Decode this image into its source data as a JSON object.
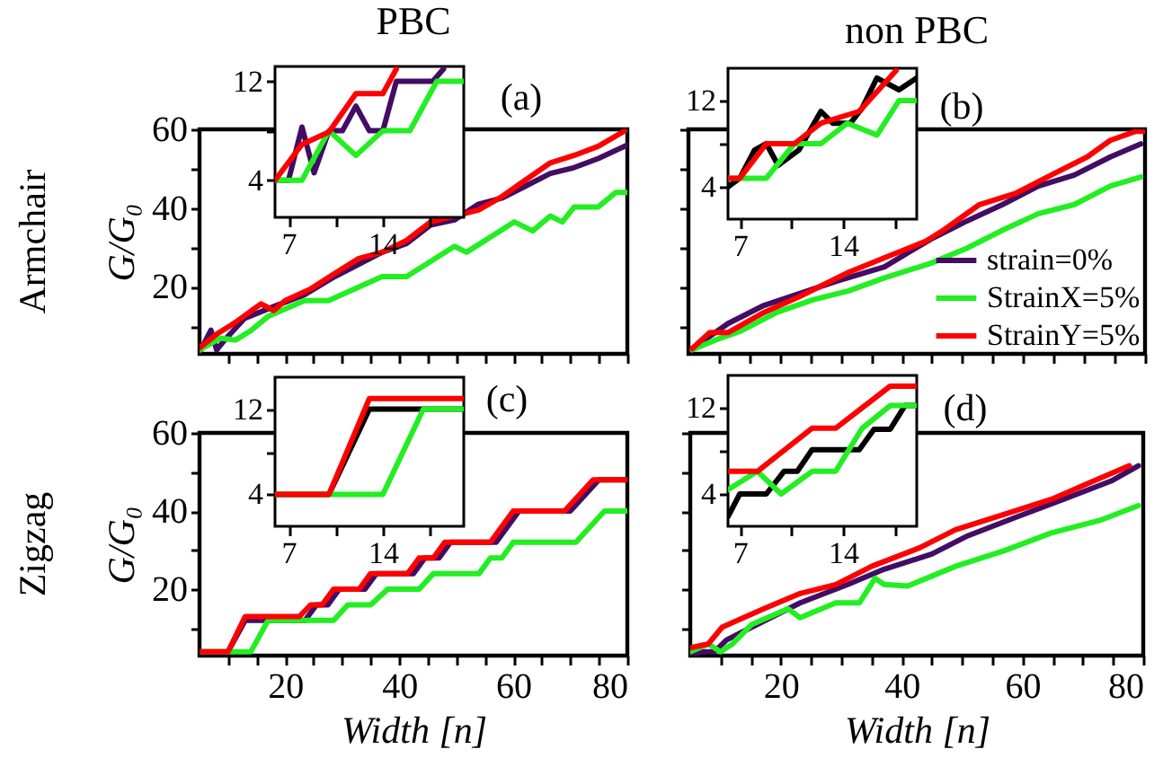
{
  "chart_data": [
    {
      "type": "line",
      "title": "PBC",
      "ylabel": "G/G₀",
      "annotations": [
        "(a)",
        "Armchair"
      ],
      "xlim": [
        5,
        80
      ],
      "ylim": [
        3,
        60
      ],
      "tick_labels": "y",
      "xticks": [
        {
          "value": 10,
          "label": null
        },
        {
          "value": 15,
          "label": null
        },
        20,
        {
          "value": 25,
          "label": null
        },
        {
          "value": 30,
          "label": null
        },
        {
          "value": 35,
          "label": null
        },
        40,
        {
          "value": 45,
          "label": null
        },
        {
          "value": 50,
          "label": null
        },
        {
          "value": 55,
          "label": null
        },
        60,
        {
          "value": 65,
          "label": null
        },
        {
          "value": 70,
          "label": null
        },
        {
          "value": 75,
          "label": null
        },
        80
      ],
      "yticks": [
        {
          "value": 10,
          "label": null
        },
        20,
        {
          "value": 30,
          "label": null
        },
        40,
        {
          "value": 50,
          "label": null
        },
        60
      ],
      "series": [
        {
          "color": "#420d63",
          "x": [
            5,
            7,
            8,
            9.7,
            12.9,
            18,
            23.4,
            28.7,
            32.9,
            37,
            41.3,
            45.5,
            49.7,
            53.9,
            58.1,
            62.3,
            66.5,
            70.7,
            74.9,
            80
          ],
          "values": [
            3.4,
            9,
            4,
            7,
            12,
            15,
            18,
            22.6,
            25.7,
            28.8,
            31,
            35.7,
            37,
            41,
            42.6,
            45.7,
            48.8,
            50.3,
            52.6,
            56
          ]
        },
        {
          "color": "#22ee22",
          "x": [
            5,
            8.7,
            11.3,
            13.9,
            17.1,
            23.4,
            27.6,
            37,
            41.3,
            49.7,
            51.8,
            60.2,
            63.4,
            66.5,
            68.6,
            70.7,
            74.9,
            78,
            80
          ],
          "values": [
            4,
            7,
            6.5,
            8.8,
            12.6,
            16.5,
            16.5,
            22.6,
            22.6,
            30.3,
            28.8,
            36.5,
            34.2,
            38,
            36.5,
            40.3,
            40.3,
            44,
            44
          ]
        },
        {
          "color": "#ff0000",
          "x": [
            5,
            8,
            11.3,
            15.8,
            18,
            20,
            24.5,
            28.7,
            32.9,
            37,
            41.3,
            45.5,
            49.7,
            53.9,
            58.1,
            62.3,
            66.5,
            70.7,
            74.9,
            80
          ],
          "values": [
            4.5,
            8,
            11,
            15.7,
            14,
            16.5,
            19.5,
            23.4,
            27.2,
            28.8,
            31.8,
            36.5,
            38,
            39.5,
            43,
            47.3,
            51.5,
            53.4,
            55.7,
            60
          ]
        }
      ]
    },
    {
      "type": "line",
      "xlim": [
        6,
        20
      ],
      "ylim": [
        1,
        13.2
      ],
      "xticks": [
        7,
        {
          "value": 10.5,
          "label": null
        },
        14,
        {
          "value": 17.5,
          "label": null
        }
      ],
      "yticks": [
        4,
        {
          "value": 8,
          "label": null
        },
        12
      ],
      "series": [
        {
          "color": "#420d63",
          "x": [
            6,
            7,
            8,
            8.9,
            10,
            11,
            12,
            13,
            14,
            15,
            17.7,
            18.5
          ],
          "values": [
            4,
            4,
            8.3,
            4.6,
            8,
            8,
            10,
            8,
            8,
            12,
            12,
            13
          ]
        },
        {
          "color": "#22ee22",
          "x": [
            6,
            8,
            10,
            12,
            14,
            16,
            18,
            20
          ],
          "values": [
            4,
            4,
            8,
            6,
            8,
            8,
            12,
            12
          ]
        },
        {
          "color": "#ff0000",
          "x": [
            6,
            8,
            10,
            12,
            14,
            15
          ],
          "values": [
            4,
            6.9,
            7.9,
            11,
            11,
            13
          ]
        }
      ]
    },
    {
      "type": "line",
      "title": "non PBC",
      "annotations": [
        "(b)"
      ],
      "xlim": [
        5,
        80
      ],
      "ylim": [
        3,
        60
      ],
      "tick_labels": false,
      "legend": "bottom right",
      "xticks": [
        {
          "value": 10,
          "label": null
        },
        {
          "value": 15,
          "label": null
        },
        20,
        {
          "value": 25,
          "label": null
        },
        {
          "value": 30,
          "label": null
        },
        {
          "value": 35,
          "label": null
        },
        40,
        {
          "value": 45,
          "label": null
        },
        {
          "value": 50,
          "label": null
        },
        {
          "value": 55,
          "label": null
        },
        60,
        {
          "value": 65,
          "label": null
        },
        {
          "value": 70,
          "label": null
        },
        {
          "value": 75,
          "label": null
        },
        80
      ],
      "yticks": [
        {
          "value": 10,
          "label": null
        },
        20,
        {
          "value": 30,
          "label": null
        },
        40,
        {
          "value": 50,
          "label": null
        },
        60
      ],
      "series": [
        {
          "name": "strain=0%",
          "color": "#420d63",
          "x": [
            5.6,
            11.5,
            17.4,
            29.2,
            37.2,
            44.8,
            50.7,
            56.6,
            62.5,
            68.4,
            74.3,
            79.3
          ],
          "values": [
            4.3,
            10.7,
            15.3,
            21.4,
            25.1,
            32.1,
            36.7,
            40.9,
            45.6,
            48.4,
            53,
            56.3
          ]
        },
        {
          "name": "StrainX=5%",
          "color": "#22ee22",
          "x": [
            5.6,
            9.4,
            13.6,
            19.5,
            25.4,
            31.3,
            37.2,
            44.8,
            50.7,
            56.6,
            62.5,
            68.4,
            74.3,
            79.3
          ],
          "values": [
            4,
            6.5,
            8.8,
            13.5,
            16.7,
            19,
            22.3,
            26,
            29.8,
            34.4,
            38.6,
            40.9,
            45.6,
            47.9
          ]
        },
        {
          "name": "StrainY=5%",
          "color": "#ff0000",
          "x": [
            5.6,
            8.5,
            11.5,
            17.4,
            23.3,
            31.3,
            37.2,
            44,
            46.9,
            52.8,
            58.7,
            64.6,
            70.5,
            74.3,
            78.5,
            80
          ],
          "values": [
            4.3,
            8.4,
            8.4,
            13.5,
            17.6,
            23.7,
            27.4,
            31.6,
            34.4,
            40.9,
            43.7,
            48.4,
            53,
            57.2,
            59.5,
            59.5
          ]
        }
      ]
    },
    {
      "type": "line",
      "xlim": [
        6.2,
        19
      ],
      "ylim": [
        1,
        15
      ],
      "xticks": [
        7,
        {
          "value": 10.5,
          "label": null
        },
        14,
        {
          "value": 17.5,
          "label": null
        }
      ],
      "yticks": [
        4,
        {
          "value": 8,
          "label": null
        },
        12
      ],
      "series": [
        {
          "color": "#000000",
          "x": [
            6.2,
            7,
            8,
            8.8,
            9.6,
            11,
            12.5,
            13.3,
            14.5,
            15.3,
            16.3,
            17.8,
            19
          ],
          "values": [
            4,
            4.8,
            7.4,
            8,
            6,
            7.4,
            11,
            9.9,
            9.9,
            11.3,
            14.1,
            13,
            14.1
          ]
        },
        {
          "color": "#22ee22",
          "x": [
            6.2,
            8.8,
            10.7,
            12.5,
            14.3,
            16.3,
            17.8,
            19
          ],
          "values": [
            4.8,
            4.8,
            8,
            8,
            9.9,
            8.8,
            12,
            12
          ]
        },
        {
          "color": "#ff0000",
          "x": [
            6.2,
            7,
            8.8,
            10.7,
            12.5,
            15.1,
            17.6
          ],
          "values": [
            4.8,
            4.8,
            8,
            8,
            9.9,
            11,
            14.8
          ]
        }
      ]
    },
    {
      "type": "line",
      "ylabel": "G/G₀",
      "xlabel": "Width [n]",
      "annotations": [
        "(c)",
        "Zigzag"
      ],
      "xlim": [
        5,
        80
      ],
      "ylim": [
        3,
        60
      ],
      "xticks": [
        {
          "value": 10,
          "label": null
        },
        {
          "value": 15,
          "label": null
        },
        20,
        {
          "value": 25,
          "label": null
        },
        {
          "value": 30,
          "label": null
        },
        {
          "value": 35,
          "label": null
        },
        40,
        {
          "value": 45,
          "label": null
        },
        {
          "value": 50,
          "label": null
        },
        {
          "value": 55,
          "label": null
        },
        60,
        {
          "value": 65,
          "label": null
        },
        {
          "value": 70,
          "label": null
        },
        {
          "value": 75,
          "label": null
        },
        80
      ],
      "yticks": [
        {
          "value": 10,
          "label": null
        },
        20,
        {
          "value": 30,
          "label": null
        },
        40,
        {
          "value": 50,
          "label": null
        },
        60
      ],
      "series": [
        {
          "color": "#420d63",
          "x": [
            5,
            10,
            13,
            23.5,
            25.5,
            27.5,
            29.5,
            34,
            36,
            42.5,
            44.5,
            47,
            49,
            57,
            61,
            70,
            75,
            80
          ],
          "values": [
            4,
            4,
            12,
            12,
            16,
            16,
            20,
            20,
            24,
            24,
            28,
            28,
            32,
            32,
            40,
            40,
            48,
            48
          ]
        },
        {
          "color": "#22ee22",
          "x": [
            5,
            14,
            17,
            28.5,
            31,
            35,
            38,
            43.5,
            46,
            54,
            56,
            58,
            60,
            71,
            76,
            80
          ],
          "values": [
            4,
            4,
            12,
            12,
            16,
            16,
            20,
            20,
            24,
            24,
            28,
            28,
            32,
            32,
            40,
            40
          ]
        },
        {
          "color": "#ff0000",
          "x": [
            5,
            10,
            13,
            22.5,
            24.5,
            26.5,
            28.5,
            33,
            35,
            41.5,
            43.5,
            46,
            48,
            56,
            60,
            69,
            74,
            80
          ],
          "values": [
            4,
            4,
            13,
            13,
            16,
            16,
            20,
            20,
            24,
            24,
            28,
            28,
            32,
            32,
            40,
            40,
            48,
            48
          ]
        }
      ]
    },
    {
      "type": "line",
      "xlim": [
        6,
        20
      ],
      "ylim": [
        1,
        15
      ],
      "xticks": [
        7,
        {
          "value": 10.5,
          "label": null
        },
        14,
        {
          "value": 17.5,
          "label": null
        }
      ],
      "yticks": [
        4,
        {
          "value": 8,
          "label": null
        },
        12
      ],
      "series": [
        {
          "color": "#000000",
          "x": [
            6,
            10,
            13,
            20
          ],
          "values": [
            4,
            4,
            12,
            12
          ]
        },
        {
          "color": "#22ee22",
          "x": [
            6,
            14,
            17,
            20
          ],
          "values": [
            4,
            4,
            12,
            12
          ]
        },
        {
          "color": "#ff0000",
          "x": [
            6,
            10,
            13,
            20
          ],
          "values": [
            4,
            4,
            13,
            13
          ]
        }
      ]
    },
    {
      "type": "line",
      "xlabel": "Width [n]",
      "annotations": [
        "(d)"
      ],
      "xlim": [
        5,
        80
      ],
      "ylim": [
        3,
        60
      ],
      "tick_labels": "x",
      "xticks": [
        {
          "value": 10,
          "label": null
        },
        {
          "value": 15,
          "label": null
        },
        20,
        {
          "value": 25,
          "label": null
        },
        {
          "value": 30,
          "label": null
        },
        {
          "value": 35,
          "label": null
        },
        40,
        {
          "value": 45,
          "label": null
        },
        {
          "value": 50,
          "label": null
        },
        {
          "value": 55,
          "label": null
        },
        60,
        {
          "value": 65,
          "label": null
        },
        {
          "value": 70,
          "label": null
        },
        {
          "value": 75,
          "label": null
        },
        80
      ],
      "yticks": [
        {
          "value": 10,
          "label": null
        },
        20,
        {
          "value": 30,
          "label": null
        },
        40,
        {
          "value": 50,
          "label": null
        },
        60
      ],
      "series": [
        {
          "color": "#420d63",
          "x": [
            5,
            7,
            9,
            11,
            15.2,
            23.2,
            31.1,
            37.1,
            45,
            51,
            58.9,
            66.8,
            74.7,
            79.2
          ],
          "values": [
            3.2,
            4,
            4,
            7,
            10.3,
            16.5,
            21.2,
            25.1,
            29,
            33.7,
            38.4,
            43,
            47.7,
            51.6
          ]
        },
        {
          "color": "#22ee22",
          "x": [
            5,
            8,
            10,
            12,
            15.2,
            21.2,
            23.2,
            29.1,
            33,
            35.6,
            37.1,
            41,
            49,
            56.9,
            64.8,
            72.8,
            79.2
          ],
          "values": [
            4,
            6,
            4,
            6,
            11,
            15,
            12.7,
            16.5,
            16.5,
            22.8,
            21.2,
            20.8,
            25.9,
            29.8,
            34.4,
            37.6,
            41.4
          ]
        },
        {
          "color": "#ff0000",
          "x": [
            5,
            8,
            10.3,
            17.2,
            23.2,
            29.1,
            35.1,
            43,
            48.9,
            56.9,
            64.8,
            71.8,
            77.7
          ],
          "values": [
            5,
            6,
            10.3,
            15,
            18.9,
            21.2,
            25.9,
            30.6,
            35.2,
            39.1,
            43,
            47.7,
            51.6
          ]
        }
      ]
    },
    {
      "type": "line",
      "xlim": [
        6.2,
        19
      ],
      "ylim": [
        1,
        15
      ],
      "xticks": [
        7,
        {
          "value": 10.5,
          "label": null
        },
        14,
        {
          "value": 17.5,
          "label": null
        }
      ],
      "yticks": [
        4,
        {
          "value": 8,
          "label": null
        },
        12
      ],
      "series": [
        {
          "color": "#000000",
          "x": [
            6.2,
            7,
            8.8,
            10,
            10.9,
            11.9,
            15.1,
            16.1,
            17.2,
            18.2,
            19
          ],
          "values": [
            1.9,
            4,
            4,
            6.1,
            6.1,
            8.1,
            8.1,
            10,
            10,
            12.2,
            12.2
          ]
        },
        {
          "color": "#22ee22",
          "x": [
            6.2,
            8.2,
            9.8,
            11.9,
            13.5,
            15.3,
            17.2,
            19
          ],
          "values": [
            4.4,
            6.1,
            4,
            6.1,
            6.1,
            10.1,
            12.2,
            12.2
          ]
        },
        {
          "color": "#ff0000",
          "x": [
            6.2,
            8.2,
            11.9,
            13.5,
            17.2,
            19
          ],
          "values": [
            6.1,
            6.1,
            10.1,
            10.1,
            14,
            14
          ]
        }
      ]
    }
  ]
}
